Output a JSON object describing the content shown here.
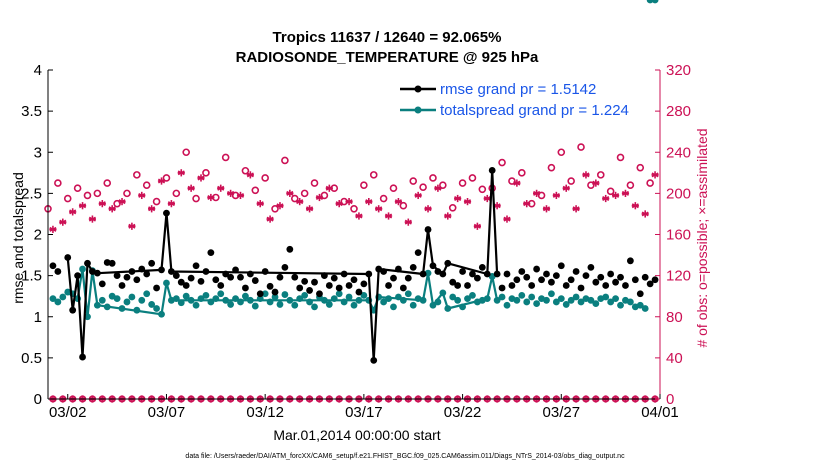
{
  "chart_data": {
    "type": "line",
    "title": "Tropics 11637 / 12640 = 92.065%",
    "subtitle": "RADIOSONDE_TEMPERATURE @ 925 hPa",
    "xlabel": "Mar.01,2014 00:00:00 start",
    "ylabel_left": "rmse and totalspread",
    "ylabel_right": "# of obs: o=possible; ×=assimilated",
    "ylim_left": [
      0,
      4
    ],
    "ylim_right": [
      0,
      320
    ],
    "xlim": [
      "2014-03-01",
      "2014-04-01"
    ],
    "yticks_left": [
      "0",
      "0.5",
      "1",
      "1.5",
      "2",
      "2.5",
      "3",
      "3.5",
      "4"
    ],
    "yticks_right": [
      "0",
      "40",
      "80",
      "120",
      "160",
      "200",
      "240",
      "280",
      "320"
    ],
    "xticks": [
      "03/02",
      "03/07",
      "03/12",
      "03/17",
      "03/22",
      "03/27",
      "04/01"
    ],
    "legend_position": "top-right",
    "grid": false,
    "footnote": "data file: /Users/raeder/DAI/ATM_forcXX/CAM6_setup/f.e21.FHIST_BGC.f09_025.CAM6assim.011/Diags_NTrS_2014-03/obs_diag_output.nc",
    "colors": {
      "rmse": "#000000",
      "totalspread": "#0a7f7f",
      "obs": "#cc1155",
      "legend_text": "#1a56e8",
      "right_axis": "#cc1155"
    },
    "series": [
      {
        "name": "rmse grand pr = 1.5142",
        "axis": "left",
        "connected_x": [
          "2014-03-02 00:00",
          "2014-03-02 06:00",
          "2014-03-02 12:00",
          "2014-03-02 18:00",
          "2014-03-03 00:00",
          "2014-03-03 06:00",
          "2014-03-03 12:00",
          "2014-03-06 18:00",
          "2014-03-07 00:00",
          "2014-03-07 06:00",
          "2014-03-17 06:00",
          "2014-03-17 12:00",
          "2014-03-17 18:00",
          "2014-03-20 00:00",
          "2014-03-20 06:00",
          "2014-03-20 12:00",
          "2014-03-21 00:00",
          "2014-03-21 06:00",
          "2014-03-23 06:00",
          "2014-03-23 12:00",
          "2014-03-23 18:00"
        ],
        "connected_y": [
          1.72,
          1.08,
          1.5,
          0.51,
          1.65,
          1.55,
          1.53,
          1.57,
          2.26,
          1.55,
          1.52,
          0.47,
          1.58,
          1.52,
          2.06,
          1.62,
          1.52,
          1.65,
          1.52,
          2.78,
          1.52
        ],
        "dot_x": [
          "2014-03-01 06:00",
          "2014-03-01 12:00",
          "2014-03-03 18:00",
          "2014-03-04 00:00",
          "2014-03-04 06:00",
          "2014-03-04 12:00",
          "2014-03-04 18:00",
          "2014-03-05 00:00",
          "2014-03-05 06:00",
          "2014-03-05 12:00",
          "2014-03-05 18:00",
          "2014-03-06 00:00",
          "2014-03-06 06:00",
          "2014-03-06 12:00",
          "2014-03-07 12:00",
          "2014-03-07 18:00",
          "2014-03-08 00:00",
          "2014-03-08 06:00",
          "2014-03-08 12:00",
          "2014-03-08 18:00",
          "2014-03-09 00:00",
          "2014-03-09 06:00",
          "2014-03-09 12:00",
          "2014-03-09 18:00",
          "2014-03-10 00:00",
          "2014-03-10 06:00",
          "2014-03-10 12:00",
          "2014-03-10 18:00",
          "2014-03-11 00:00",
          "2014-03-11 06:00",
          "2014-03-11 12:00",
          "2014-03-11 18:00",
          "2014-03-12 00:00",
          "2014-03-12 06:00",
          "2014-03-12 12:00",
          "2014-03-12 18:00",
          "2014-03-13 00:00",
          "2014-03-13 06:00",
          "2014-03-13 12:00",
          "2014-03-13 18:00",
          "2014-03-14 00:00",
          "2014-03-14 06:00",
          "2014-03-14 12:00",
          "2014-03-14 18:00",
          "2014-03-15 00:00",
          "2014-03-15 06:00",
          "2014-03-15 12:00",
          "2014-03-15 18:00",
          "2014-03-16 00:00",
          "2014-03-16 06:00",
          "2014-03-16 12:00",
          "2014-03-16 18:00",
          "2014-03-17 00:00",
          "2014-03-18 00:00",
          "2014-03-18 06:00",
          "2014-03-18 12:00",
          "2014-03-18 18:00",
          "2014-03-19 00:00",
          "2014-03-19 06:00",
          "2014-03-19 12:00",
          "2014-03-19 18:00",
          "2014-03-20 18:00",
          "2014-03-21 12:00",
          "2014-03-21 18:00",
          "2014-03-22 00:00",
          "2014-03-22 06:00",
          "2014-03-22 12:00",
          "2014-03-22 18:00",
          "2014-03-23 00:00",
          "2014-03-24 00:00",
          "2014-03-24 06:00",
          "2014-03-24 12:00",
          "2014-03-24 18:00",
          "2014-03-25 00:00",
          "2014-03-25 06:00",
          "2014-03-25 12:00",
          "2014-03-25 18:00",
          "2014-03-26 00:00",
          "2014-03-26 06:00",
          "2014-03-26 12:00",
          "2014-03-26 18:00",
          "2014-03-27 00:00",
          "2014-03-27 06:00",
          "2014-03-27 12:00",
          "2014-03-27 18:00",
          "2014-03-28 00:00",
          "2014-03-28 06:00",
          "2014-03-28 12:00",
          "2014-03-28 18:00",
          "2014-03-29 00:00",
          "2014-03-29 06:00",
          "2014-03-29 12:00",
          "2014-03-29 18:00",
          "2014-03-30 00:00",
          "2014-03-30 06:00",
          "2014-03-30 12:00",
          "2014-03-30 18:00",
          "2014-03-31 00:00",
          "2014-03-31 06:00",
          "2014-03-31 12:00",
          "2014-03-31 18:00"
        ],
        "dot_y": [
          1.62,
          1.55,
          1.4,
          1.66,
          1.65,
          1.5,
          1.38,
          1.48,
          1.55,
          1.45,
          1.58,
          1.52,
          1.65,
          1.35,
          1.5,
          1.42,
          1.38,
          1.47,
          1.62,
          1.43,
          1.55,
          1.78,
          1.45,
          1.38,
          1.52,
          1.48,
          1.57,
          1.48,
          1.35,
          1.52,
          1.44,
          1.28,
          1.55,
          1.37,
          1.3,
          1.48,
          1.6,
          1.82,
          1.48,
          1.35,
          1.43,
          1.32,
          1.42,
          1.28,
          1.5,
          1.38,
          1.47,
          1.35,
          1.52,
          1.38,
          1.45,
          1.3,
          1.4,
          1.55,
          1.38,
          1.47,
          1.58,
          1.35,
          1.47,
          1.6,
          1.78,
          1.55,
          1.42,
          1.38,
          1.55,
          1.38,
          1.52,
          1.47,
          1.6,
          1.35,
          1.52,
          1.38,
          1.45,
          1.55,
          1.48,
          1.38,
          1.58,
          1.45,
          1.52,
          1.42,
          1.5,
          1.62,
          1.38,
          1.45,
          1.55,
          1.35,
          1.5,
          1.6,
          1.42,
          1.48,
          1.38,
          1.52,
          1.42,
          1.48,
          1.38,
          1.68,
          1.45,
          1.28,
          1.48,
          1.4,
          1.45
        ]
      },
      {
        "name": "totalspread grand pr = 1.224",
        "axis": "left",
        "connected_x": [
          "2014-03-02 12:00",
          "2014-03-02 18:00",
          "2014-03-03 00:00",
          "2014-03-03 06:00",
          "2014-03-03 12:00",
          "2014-03-06 18:00",
          "2014-03-07 00:00",
          "2014-03-07 06:00",
          "2014-03-17 06:00",
          "2014-03-17 12:00",
          "2014-03-17 18:00",
          "2014-03-20 00:00",
          "2014-03-20 06:00",
          "2014-03-20 12:00",
          "2014-03-21 00:00",
          "2014-03-21 06:00",
          "2014-03-23 06:00",
          "2014-03-23 12:00",
          "2014-03-23 18:00"
        ],
        "connected_y": [
          1.22,
          1.58,
          1.0,
          1.56,
          1.14,
          1.03,
          1.41,
          1.2,
          1.2,
          1.08,
          1.24,
          1.2,
          1.53,
          1.14,
          1.29,
          1.1,
          1.22,
          1.49,
          1.2
        ],
        "dot_x": [
          "2014-03-01 06:00",
          "2014-03-01 12:00",
          "2014-03-01 18:00",
          "2014-03-02 00:00",
          "2014-03-02 06:00",
          "2014-03-03 18:00",
          "2014-03-04 00:00",
          "2014-03-04 06:00",
          "2014-03-04 12:00",
          "2014-03-04 18:00",
          "2014-03-05 00:00",
          "2014-03-05 06:00",
          "2014-03-05 12:00",
          "2014-03-05 18:00",
          "2014-03-06 00:00",
          "2014-03-06 06:00",
          "2014-03-06 12:00",
          "2014-03-07 12:00",
          "2014-03-07 18:00",
          "2014-03-08 00:00",
          "2014-03-08 06:00",
          "2014-03-08 12:00",
          "2014-03-08 18:00",
          "2014-03-09 00:00",
          "2014-03-09 06:00",
          "2014-03-09 12:00",
          "2014-03-09 18:00",
          "2014-03-10 00:00",
          "2014-03-10 06:00",
          "2014-03-10 12:00",
          "2014-03-10 18:00",
          "2014-03-11 00:00",
          "2014-03-11 06:00",
          "2014-03-11 12:00",
          "2014-03-11 18:00",
          "2014-03-12 00:00",
          "2014-03-12 06:00",
          "2014-03-12 12:00",
          "2014-03-12 18:00",
          "2014-03-13 00:00",
          "2014-03-13 06:00",
          "2014-03-13 12:00",
          "2014-03-13 18:00",
          "2014-03-14 00:00",
          "2014-03-14 06:00",
          "2014-03-14 12:00",
          "2014-03-14 18:00",
          "2014-03-15 00:00",
          "2014-03-15 06:00",
          "2014-03-15 12:00",
          "2014-03-15 18:00",
          "2014-03-16 00:00",
          "2014-03-16 06:00",
          "2014-03-16 12:00",
          "2014-03-16 18:00",
          "2014-03-17 00:00",
          "2014-03-18 00:00",
          "2014-03-18 06:00",
          "2014-03-18 12:00",
          "2014-03-18 18:00",
          "2014-03-19 00:00",
          "2014-03-19 06:00",
          "2014-03-19 12:00",
          "2014-03-19 18:00",
          "2014-03-20 18:00",
          "2014-03-21 12:00",
          "2014-03-21 18:00",
          "2014-03-22 00:00",
          "2014-03-22 06:00",
          "2014-03-22 12:00",
          "2014-03-22 18:00",
          "2014-03-23 00:00",
          "2014-03-24 00:00",
          "2014-03-24 06:00",
          "2014-03-24 12:00",
          "2014-03-24 18:00",
          "2014-03-25 00:00",
          "2014-03-25 06:00",
          "2014-03-25 12:00",
          "2014-03-25 18:00",
          "2014-03-26 00:00",
          "2014-03-26 06:00",
          "2014-03-26 12:00",
          "2014-03-26 18:00",
          "2014-03-27 00:00",
          "2014-03-27 06:00",
          "2014-03-27 12:00",
          "2014-03-27 18:00",
          "2014-03-28 00:00",
          "2014-03-28 06:00",
          "2014-03-28 12:00",
          "2014-03-28 18:00",
          "2014-03-29 00:00",
          "2014-03-29 06:00",
          "2014-03-29 12:00",
          "2014-03-29 18:00",
          "2014-03-30 00:00",
          "2014-03-30 06:00",
          "2014-03-30 12:00",
          "2014-03-30 18:00",
          "2014-03-31 00:00",
          "2014-03-31 06:00",
          "2014-03-31 12:00",
          "2014-03-31 18:00"
        ],
        "dot_y": [
          1.22,
          1.18,
          1.24,
          1.3,
          1.28,
          1.2,
          1.12,
          1.25,
          1.22,
          1.1,
          1.18,
          1.24,
          1.08,
          1.2,
          1.28,
          1.15,
          1.1,
          1.22,
          1.17,
          1.25,
          1.2,
          1.14,
          1.22,
          1.26,
          1.18,
          1.22,
          1.28,
          1.2,
          1.15,
          1.22,
          1.18,
          1.25,
          1.2,
          1.13,
          1.22,
          1.28,
          1.18,
          1.24,
          1.15,
          1.27,
          1.2,
          1.14,
          1.22,
          1.26,
          1.18,
          1.12,
          1.24,
          1.2,
          1.15,
          1.22,
          1.28,
          1.18,
          1.24,
          1.14,
          1.2,
          1.26,
          1.18,
          1.22,
          1.12,
          1.24,
          1.2,
          1.28,
          1.14,
          1.22,
          1.18,
          1.24,
          1.2,
          1.12,
          1.22,
          1.26,
          1.18,
          1.2,
          1.24,
          1.14,
          1.22,
          1.2,
          1.26,
          1.18,
          1.24,
          1.16,
          1.22,
          1.2,
          1.28,
          1.18,
          1.22,
          1.15,
          1.2,
          1.24,
          1.18,
          1.22,
          1.2,
          1.16,
          1.22,
          1.24,
          1.18,
          1.22,
          1.14,
          1.2,
          1.18,
          1.12,
          1.14,
          1.1
        ]
      },
      {
        "marker": "o",
        "axis": "right",
        "x": [
          "2014-03-01 00:00",
          "2014-03-01 12:00",
          "2014-03-02 00:00",
          "2014-03-02 12:00",
          "2014-03-03 00:00",
          "2014-03-03 12:00",
          "2014-03-04 00:00",
          "2014-03-04 12:00",
          "2014-03-05 00:00",
          "2014-03-05 12:00",
          "2014-03-06 00:00",
          "2014-03-06 12:00",
          "2014-03-07 00:00",
          "2014-03-07 12:00",
          "2014-03-08 00:00",
          "2014-03-08 12:00",
          "2014-03-09 00:00",
          "2014-03-09 12:00",
          "2014-03-10 00:00",
          "2014-03-10 12:00",
          "2014-03-11 00:00",
          "2014-03-11 12:00",
          "2014-03-12 00:00",
          "2014-03-12 12:00",
          "2014-03-13 00:00",
          "2014-03-13 12:00",
          "2014-03-14 00:00",
          "2014-03-14 12:00",
          "2014-03-15 00:00",
          "2014-03-15 12:00",
          "2014-03-16 00:00",
          "2014-03-16 12:00",
          "2014-03-17 00:00",
          "2014-03-17 12:00",
          "2014-03-18 00:00",
          "2014-03-18 12:00",
          "2014-03-19 00:00",
          "2014-03-19 12:00",
          "2014-03-20 00:00",
          "2014-03-20 12:00",
          "2014-03-21 00:00",
          "2014-03-21 12:00",
          "2014-03-22 00:00",
          "2014-03-22 12:00",
          "2014-03-23 00:00",
          "2014-03-23 12:00",
          "2014-03-24 00:00",
          "2014-03-24 12:00",
          "2014-03-25 00:00",
          "2014-03-25 12:00",
          "2014-03-26 00:00",
          "2014-03-26 12:00",
          "2014-03-27 00:00",
          "2014-03-27 12:00",
          "2014-03-28 00:00",
          "2014-03-28 12:00",
          "2014-03-29 00:00",
          "2014-03-29 12:00",
          "2014-03-30 00:00",
          "2014-03-30 12:00",
          "2014-03-31 00:00",
          "2014-03-31 12:00"
        ],
        "y": [
          185,
          210,
          195,
          205,
          198,
          200,
          210,
          190,
          200,
          218,
          208,
          192,
          215,
          200,
          240,
          195,
          220,
          196,
          235,
          198,
          222,
          203,
          215,
          185,
          232,
          195,
          200,
          210,
          198,
          205,
          192,
          185,
          208,
          218,
          195,
          205,
          188,
          212,
          206,
          215,
          208,
          186,
          210,
          215,
          204,
          205,
          230,
          212,
          220,
          190,
          198,
          225,
          240,
          212,
          245,
          208,
          218,
          202,
          235,
          208,
          225,
          210
        ]
      },
      {
        "marker": "*",
        "axis": "right",
        "x": [
          "2014-03-01 06:00",
          "2014-03-01 18:00",
          "2014-03-02 06:00",
          "2014-03-02 18:00",
          "2014-03-03 06:00",
          "2014-03-03 18:00",
          "2014-03-04 06:00",
          "2014-03-04 18:00",
          "2014-03-05 06:00",
          "2014-03-05 18:00",
          "2014-03-06 06:00",
          "2014-03-06 18:00",
          "2014-03-07 06:00",
          "2014-03-07 18:00",
          "2014-03-08 06:00",
          "2014-03-08 18:00",
          "2014-03-09 06:00",
          "2014-03-09 18:00",
          "2014-03-10 06:00",
          "2014-03-10 18:00",
          "2014-03-11 06:00",
          "2014-03-11 18:00",
          "2014-03-12 06:00",
          "2014-03-12 18:00",
          "2014-03-13 06:00",
          "2014-03-13 18:00",
          "2014-03-14 06:00",
          "2014-03-14 18:00",
          "2014-03-15 06:00",
          "2014-03-15 18:00",
          "2014-03-16 06:00",
          "2014-03-16 18:00",
          "2014-03-17 06:00",
          "2014-03-17 18:00",
          "2014-03-18 06:00",
          "2014-03-18 18:00",
          "2014-03-19 06:00",
          "2014-03-19 18:00",
          "2014-03-20 06:00",
          "2014-03-20 18:00",
          "2014-03-21 06:00",
          "2014-03-21 18:00",
          "2014-03-22 06:00",
          "2014-03-22 18:00",
          "2014-03-23 06:00",
          "2014-03-23 18:00",
          "2014-03-24 06:00",
          "2014-03-24 18:00",
          "2014-03-25 06:00",
          "2014-03-25 18:00",
          "2014-03-26 06:00",
          "2014-03-26 18:00",
          "2014-03-27 06:00",
          "2014-03-27 18:00",
          "2014-03-28 06:00",
          "2014-03-28 18:00",
          "2014-03-29 06:00",
          "2014-03-29 18:00",
          "2014-03-30 06:00",
          "2014-03-30 18:00",
          "2014-03-31 06:00",
          "2014-03-31 18:00"
        ],
        "y": [
          165,
          172,
          182,
          188,
          175,
          190,
          185,
          192,
          168,
          198,
          185,
          212,
          190,
          220,
          205,
          215,
          196,
          205,
          200,
          198,
          218,
          190,
          175,
          188,
          200,
          192,
          185,
          196,
          205,
          190,
          192,
          178,
          192,
          185,
          178,
          192,
          172,
          198,
          185,
          205,
          178,
          195,
          192,
          168,
          195,
          188,
          175,
          210,
          190,
          200,
          185,
          198,
          205,
          185,
          218,
          210,
          195,
          198,
          200,
          188,
          180,
          218
        ]
      },
      {
        "marker": "o",
        "axis": "right",
        "y_constant": 0
      },
      {
        "marker": "*",
        "axis": "right",
        "y_constant": 0
      }
    ]
  }
}
